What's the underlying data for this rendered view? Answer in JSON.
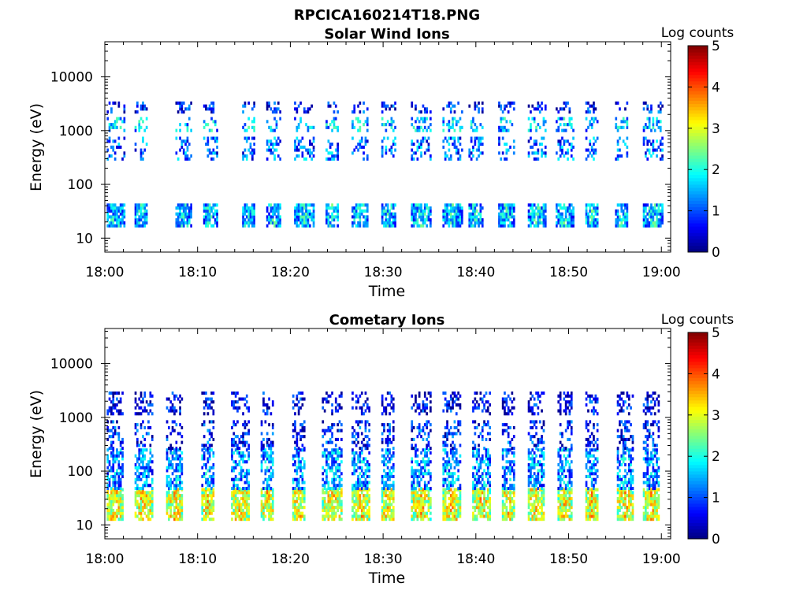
{
  "figure": {
    "title": "RPCICA160214T18.PNG",
    "colormap": "jet",
    "background": "#ffffff"
  },
  "chart_data": [
    {
      "type": "heatmap",
      "title": "Solar Wind Ions",
      "xlabel": "Time",
      "ylabel": "Energy (eV)",
      "x_ticks": [
        "18:00",
        "18:10",
        "18:20",
        "18:30",
        "18:40",
        "18:50",
        "19:00"
      ],
      "x_range_minutes": [
        0,
        61
      ],
      "y_scale": "log",
      "y_ticks": [
        "10",
        "100",
        "1000",
        "10000"
      ],
      "y_tick_values": [
        10,
        100,
        1000,
        10000
      ],
      "ylim": [
        5.5,
        45000
      ],
      "colorbar": {
        "label": "Log counts",
        "ticks": [
          "0",
          "1",
          "2",
          "3",
          "4",
          "5"
        ],
        "range": [
          0,
          5
        ]
      },
      "scan_start_minutes": [
        0.2,
        3.2,
        7.6,
        10.6,
        14.8,
        17.4,
        20.4,
        23.8,
        26.6,
        29.8,
        33.0,
        36.4,
        39.2,
        42.4,
        45.6,
        48.6,
        51.8,
        55.0,
        58.0
      ],
      "bands": [
        {
          "energy_eV": [
            16,
            42
          ],
          "typical_log_counts": 1.2
        },
        {
          "energy_eV": [
            280,
            700
          ],
          "typical_log_counts": 1.0
        },
        {
          "energy_eV": [
            950,
            1700
          ],
          "typical_log_counts": 1.4
        },
        {
          "energy_eV": [
            2100,
            3200
          ],
          "typical_log_counts": 0.6
        }
      ]
    },
    {
      "type": "heatmap",
      "title": "Cometary Ions",
      "xlabel": "Time",
      "ylabel": "Energy (eV)",
      "x_ticks": [
        "18:00",
        "18:10",
        "18:20",
        "18:30",
        "18:40",
        "18:50",
        "19:00"
      ],
      "x_range_minutes": [
        0,
        61
      ],
      "y_scale": "log",
      "y_ticks": [
        "10",
        "100",
        "1000",
        "10000"
      ],
      "y_tick_values": [
        10,
        100,
        1000,
        10000
      ],
      "ylim": [
        5.5,
        45000
      ],
      "colorbar": {
        "label": "Log counts",
        "ticks": [
          "0",
          "1",
          "2",
          "3",
          "4",
          "5"
        ],
        "range": [
          0,
          5
        ]
      },
      "scan_start_minutes": [
        0.2,
        3.2,
        6.6,
        10.4,
        13.6,
        16.8,
        20.2,
        23.4,
        26.6,
        29.8,
        33.0,
        36.4,
        39.6,
        42.8,
        45.6,
        48.8,
        51.8,
        55.2,
        58.0
      ],
      "bands": [
        {
          "energy_eV": [
            12,
            45
          ],
          "typical_log_counts": 2.6
        },
        {
          "energy_eV": [
            45,
            250
          ],
          "typical_log_counts": 1.2
        },
        {
          "energy_eV": [
            250,
            800
          ],
          "typical_log_counts": 0.6
        },
        {
          "energy_eV": [
            1100,
            3000
          ],
          "typical_log_counts": 0.4
        }
      ]
    }
  ]
}
